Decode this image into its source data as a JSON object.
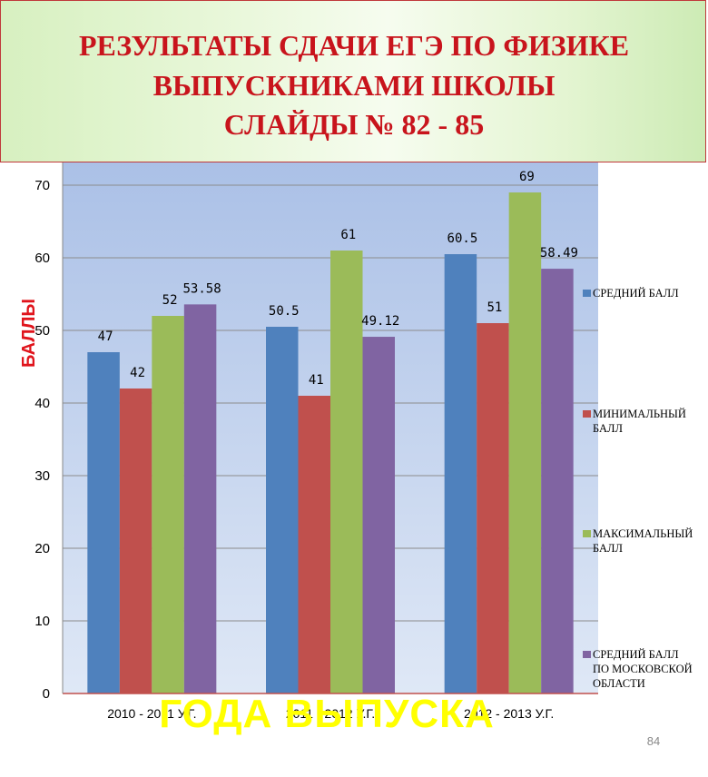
{
  "title": {
    "lines": [
      "РЕЗУЛЬТАТЫ СДАЧИ  ЕГЭ  ПО ФИЗИКЕ",
      "ВЫПУСКНИКАМИ ШКОЛЫ",
      "СЛАЙДЫ № 82 - 85"
    ]
  },
  "page_number": "84",
  "colors": {
    "plot_background_top": "#a9bfe6",
    "plot_background_bottom": "#dfe8f6",
    "title_text": "#c8141c",
    "axis_title": "#e0141c",
    "x_axis_title": "#ffff00"
  },
  "chart_data": {
    "type": "bar",
    "ylabel": "БАЛЛЫ",
    "xlabel": "ГОДА  ВЫПУСКА",
    "categories": [
      "2010 - 2011 У.Г.",
      "2011 - 2012 У.Г.",
      "2012 - 2013 У.Г."
    ],
    "ylim": [
      0,
      70
    ],
    "yticks": [
      0,
      10,
      20,
      30,
      40,
      50,
      60,
      70
    ],
    "grid": true,
    "legend_position": "right",
    "series": [
      {
        "name": "СРЕДНИЙ БАЛЛ",
        "color": "#4f81bd",
        "values": [
          47,
          50.5,
          60.5
        ],
        "labels": [
          "47",
          "50.5",
          "60.5"
        ]
      },
      {
        "name": "МИНИМАЛЬНЫЙ БАЛЛ",
        "color": "#c0504d",
        "values": [
          42,
          41,
          51
        ],
        "labels": [
          "42",
          "41",
          "51"
        ]
      },
      {
        "name": "МАКСИМАЛЬНЫЙ БАЛЛ",
        "color": "#9bbb59",
        "values": [
          52,
          61,
          69
        ],
        "labels": [
          "52",
          "61",
          "69"
        ]
      },
      {
        "name": "СРЕДНИЙ БАЛЛ ПО МОСКОВСКОЙ ОБЛАСТИ",
        "color": "#8064a2",
        "values": [
          53.58,
          49.12,
          58.49
        ],
        "labels": [
          "53.58",
          "49.12",
          "58.49"
        ]
      }
    ],
    "legend_lines": [
      [
        "СРЕДНИЙ БАЛЛ"
      ],
      [
        "МИНИМАЛЬНЫЙ",
        "БАЛЛ"
      ],
      [
        "МАКСИМАЛЬНЫЙ",
        "БАЛЛ"
      ],
      [
        "СРЕДНИЙ БАЛЛ",
        "ПО МОСКОВСКОЙ",
        "ОБЛАСТИ"
      ]
    ]
  }
}
